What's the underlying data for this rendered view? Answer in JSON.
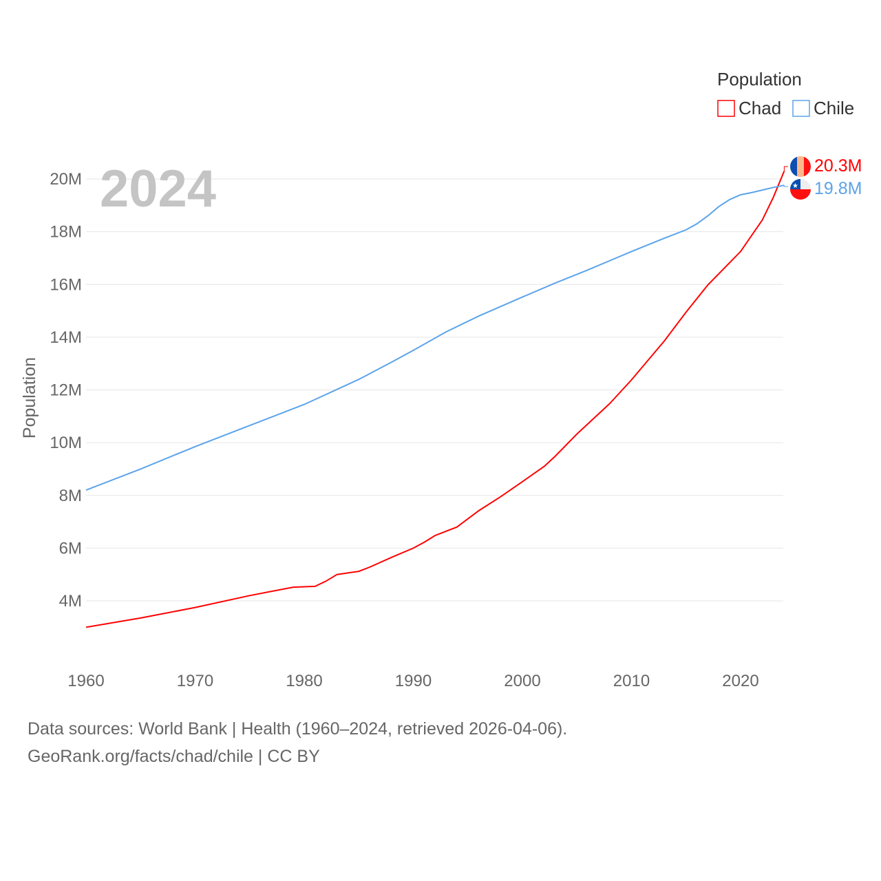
{
  "chart_data": {
    "type": "line",
    "title": "",
    "year_label": "2024",
    "ylabel": "Population",
    "xlabel": "",
    "ylim": [
      2,
      20.5
    ],
    "xlim": [
      1960,
      2024
    ],
    "yticks": [
      "4M",
      "6M",
      "8M",
      "10M",
      "12M",
      "14M",
      "16M",
      "18M",
      "20M"
    ],
    "ytick_values": [
      4,
      6,
      8,
      10,
      12,
      14,
      16,
      18,
      20
    ],
    "xticks": [
      "1960",
      "1970",
      "1980",
      "1990",
      "2000",
      "2010",
      "2020"
    ],
    "xtick_values": [
      1960,
      1970,
      1980,
      1990,
      2000,
      2010,
      2020
    ],
    "legend": {
      "title": "Population",
      "position": "top-right"
    },
    "series": [
      {
        "name": "Chad",
        "color": "#ff0000",
        "end_label": "20.3M",
        "x": [
          1960,
          1965,
          1970,
          1975,
          1979,
          1981,
          1982,
          1983,
          1985,
          1986,
          1988,
          1990,
          1991,
          1992,
          1994,
          1996,
          1998,
          2000,
          2002,
          2003,
          2005,
          2008,
          2010,
          2013,
          2015,
          2017,
          2020,
          2022,
          2023,
          2024
        ],
        "y": [
          3.0,
          3.35,
          3.75,
          4.2,
          4.52,
          4.55,
          4.75,
          5.0,
          5.12,
          5.28,
          5.65,
          6.0,
          6.22,
          6.48,
          6.8,
          7.42,
          7.95,
          8.52,
          9.1,
          9.48,
          10.33,
          11.48,
          12.38,
          13.85,
          14.95,
          15.98,
          17.25,
          18.45,
          19.3,
          20.3
        ]
      },
      {
        "name": "Chile",
        "color": "#5ba3ea",
        "end_label": "19.8M",
        "x": [
          1960,
          1965,
          1970,
          1975,
          1980,
          1985,
          1988,
          1990,
          1993,
          1996,
          2000,
          2003,
          2006,
          2010,
          2013,
          2015,
          2016,
          2017,
          2018,
          2019,
          2020,
          2021,
          2022,
          2023,
          2024
        ],
        "y": [
          8.2,
          9.0,
          9.85,
          10.65,
          11.45,
          12.4,
          13.05,
          13.5,
          14.2,
          14.8,
          15.52,
          16.05,
          16.55,
          17.25,
          17.75,
          18.07,
          18.3,
          18.6,
          18.95,
          19.22,
          19.4,
          19.48,
          19.58,
          19.68,
          19.76
        ]
      }
    ]
  },
  "footer": {
    "line1": "Data sources: World Bank | Health (1960–2024, retrieved 2026-04-06).",
    "line2": "GeoRank.org/facts/chad/chile | CC BY"
  }
}
